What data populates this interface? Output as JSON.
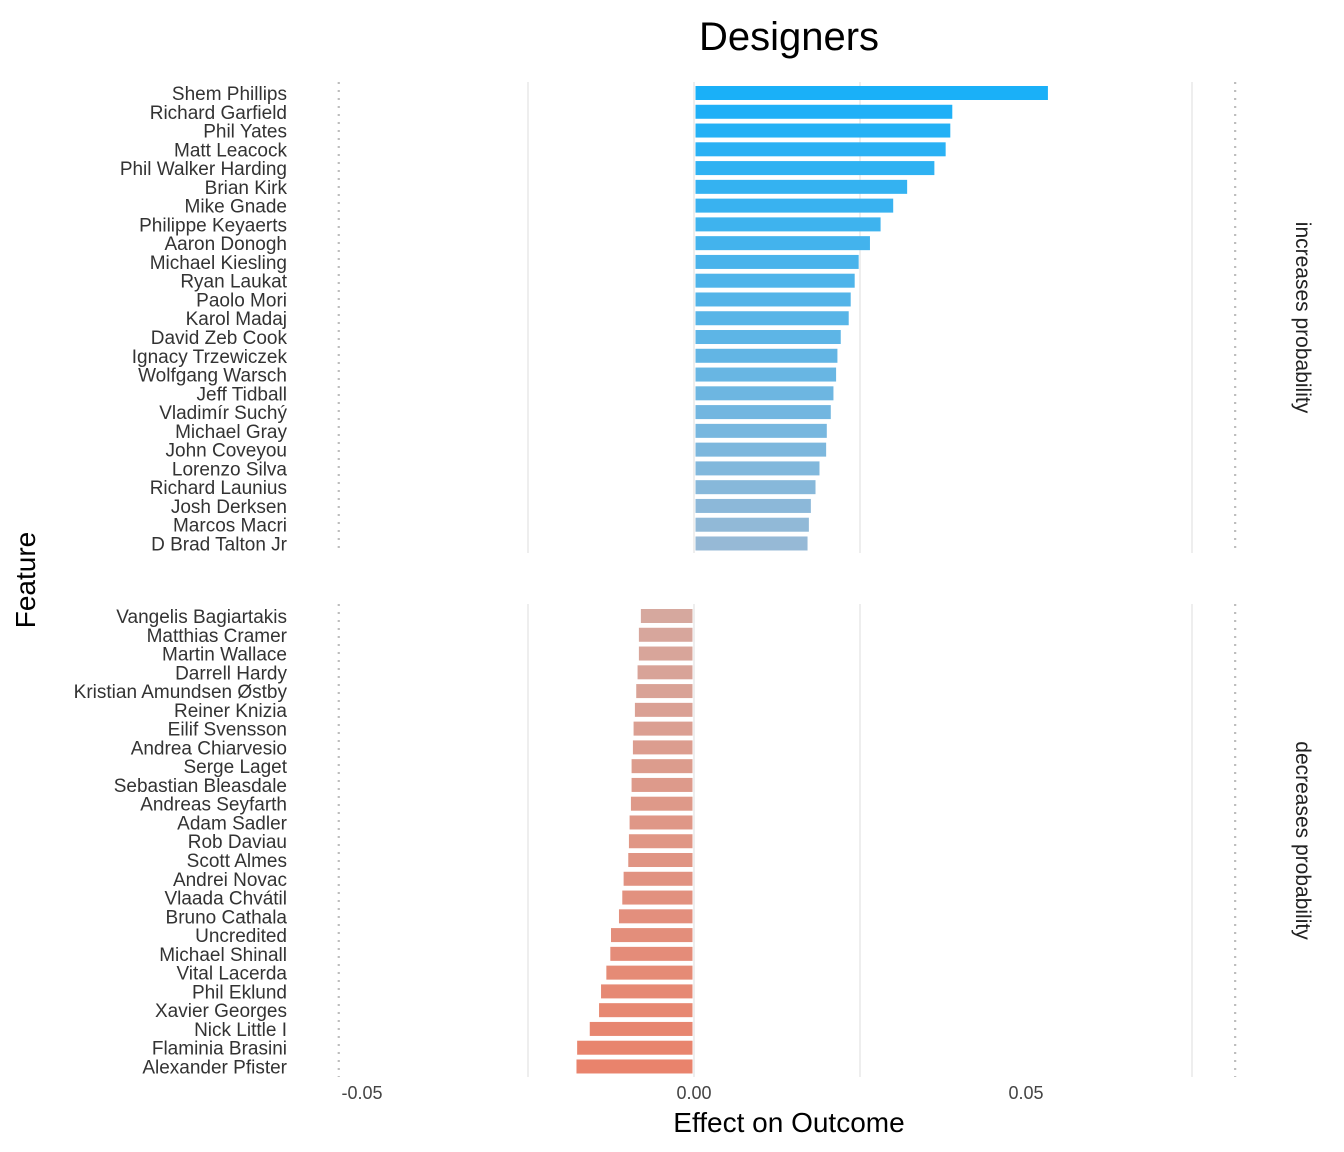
{
  "chart_data": {
    "type": "bar",
    "orientation": "horizontal",
    "title": "Designers",
    "xlabel": "Effect on Outcome",
    "ylabel": "Feature",
    "xlim": [
      -0.053,
      0.083
    ],
    "xticks": [
      -0.05,
      0.0,
      0.05
    ],
    "xtick_labels": [
      "-0.05",
      "0.00",
      "0.05"
    ],
    "grid": true,
    "reference_lines": [
      -0.0535,
      0.0815
    ],
    "facets": [
      {
        "label": "increases probability",
        "color_range": [
          "#1ab0f8",
          "#96b9d6"
        ],
        "categories": [
          "Shem Phillips",
          "Richard Garfield",
          "Phil Yates",
          "Matt Leacock",
          "Phil Walker Harding",
          "Brian Kirk",
          "Mike Gnade",
          "Philippe Keyaerts",
          "Aaron Donogh",
          "Michael Kiesling",
          "Ryan Laukat",
          "Paolo Mori",
          "Karol Madaj",
          "David Zeb Cook",
          "Ignacy Trzewiczek",
          "Wolfgang Warsch",
          "Jeff Tidball",
          "Vladimír Suchý",
          "Michael Gray",
          "John Coveyou",
          "Lorenzo Silva",
          "Richard Launius",
          "Josh Derksen",
          "Marcos Macri",
          "D Brad Talton Jr"
        ],
        "values": [
          0.0533,
          0.0389,
          0.0386,
          0.0379,
          0.0362,
          0.0321,
          0.03,
          0.0281,
          0.0265,
          0.0248,
          0.0242,
          0.0236,
          0.0233,
          0.0221,
          0.0216,
          0.0214,
          0.021,
          0.0206,
          0.02,
          0.0199,
          0.0189,
          0.0183,
          0.0176,
          0.0173,
          0.0171
        ]
      },
      {
        "label": "decreases probability",
        "color_range": [
          "#d6a89e",
          "#e9836c"
        ],
        "categories": [
          "Vangelis Bagiartakis",
          "Matthias Cramer",
          "Martin Wallace",
          "Darrell Hardy",
          "Kristian Amundsen Østby",
          "Reiner Knizia",
          "Eilif Svensson",
          "Andrea Chiarvesio",
          "Serge Laget",
          "Sebastian Bleasdale",
          "Andreas Seyfarth",
          "Adam Sadler",
          "Rob Daviau",
          "Scott Almes",
          "Andrei Novac",
          "Vlaada Chvátil",
          "Bruno Cathala",
          "Uncredited",
          "Michael Shinall",
          "Vital Lacerda",
          "Phil Eklund",
          "Xavier Georges",
          "Nick Little I",
          "Flaminia Brasini",
          "Alexander Pfister"
        ],
        "values": [
          -0.008,
          -0.0083,
          -0.0083,
          -0.0085,
          -0.0087,
          -0.0089,
          -0.0091,
          -0.0092,
          -0.0094,
          -0.0094,
          -0.0095,
          -0.0097,
          -0.0098,
          -0.0099,
          -0.0106,
          -0.0108,
          -0.0113,
          -0.0125,
          -0.0126,
          -0.0132,
          -0.014,
          -0.0143,
          -0.0157,
          -0.0176,
          -0.0177
        ]
      }
    ]
  }
}
